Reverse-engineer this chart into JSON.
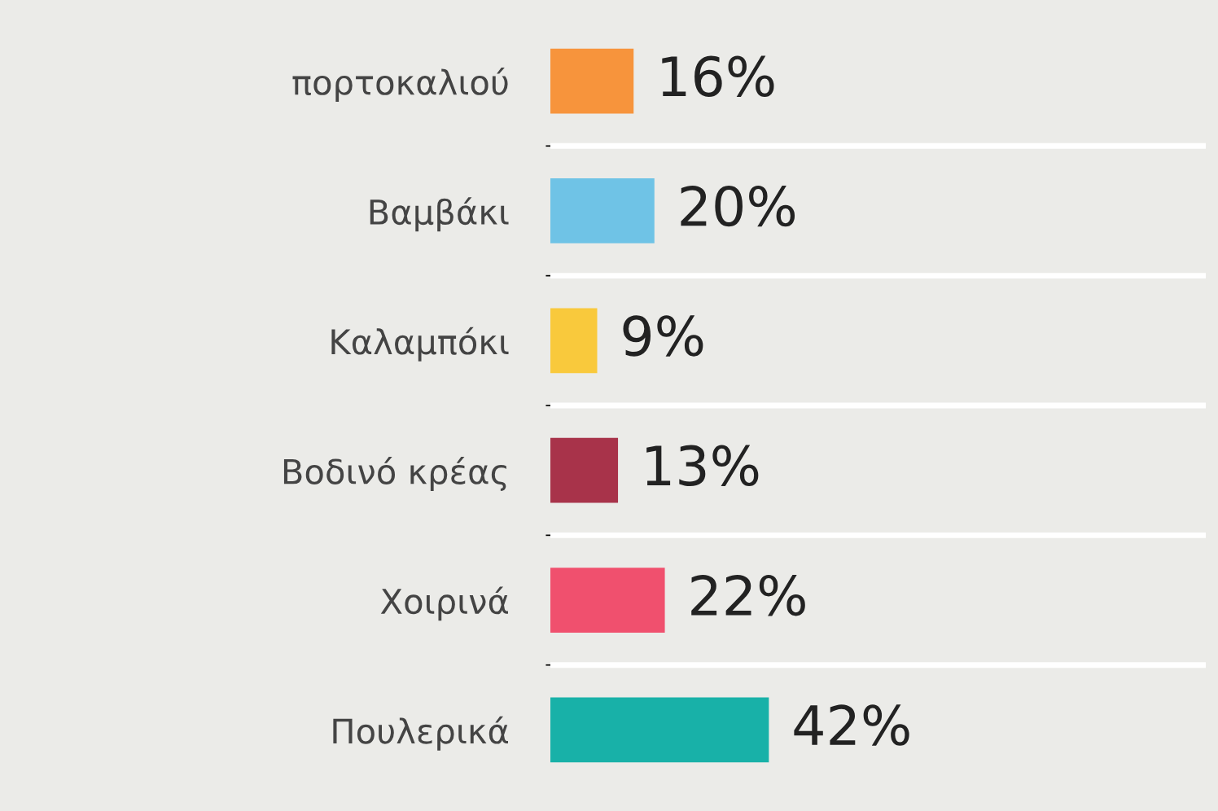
{
  "chart_data": {
    "type": "bar",
    "orientation": "horizontal",
    "categories": [
      "πορτοκαλιού",
      "Βαμβάκι",
      "Καλαμπόκι",
      "Βοδινό κρέας",
      "Χοιρινά",
      "Πουλερικά"
    ],
    "values": [
      16,
      20,
      9,
      13,
      22,
      42
    ],
    "colors": [
      "#f7943c",
      "#6fc3e6",
      "#f9c93c",
      "#a8334a",
      "#f0506e",
      "#18b1a8"
    ],
    "value_labels": [
      "16%",
      "20%",
      "9%",
      "13%",
      "22%",
      "42%"
    ],
    "grid": "y"
  }
}
